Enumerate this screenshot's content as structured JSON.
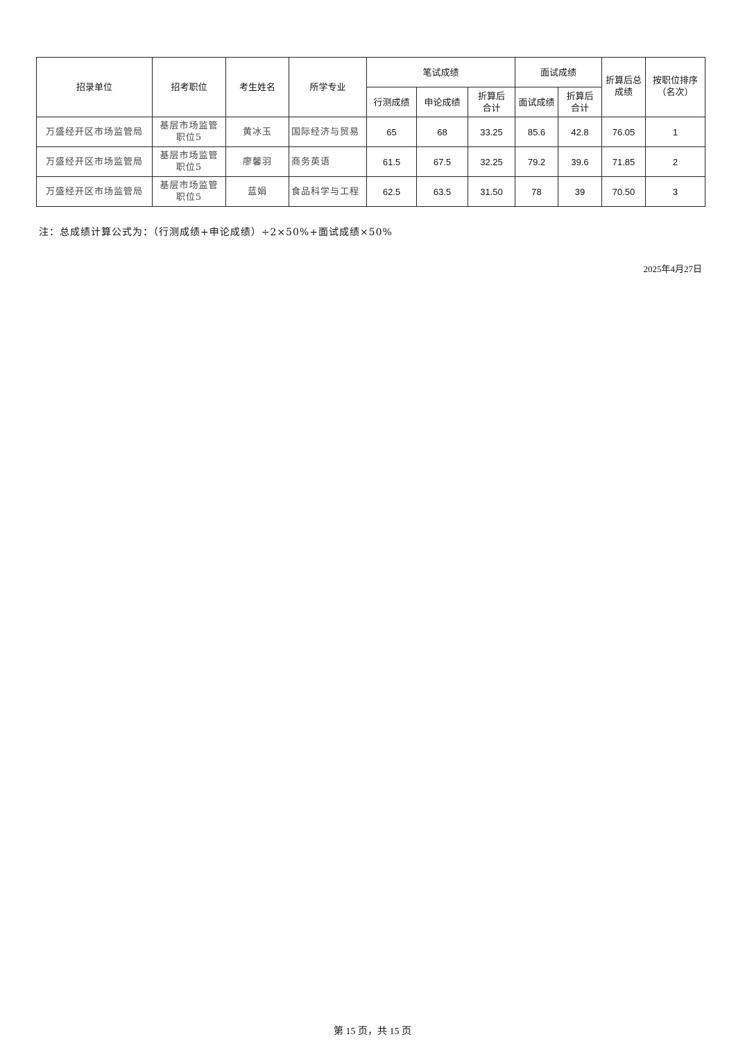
{
  "table": {
    "headers": {
      "unit": "招录单位",
      "position": "招考职位",
      "name": "考生姓名",
      "major": "所学专业",
      "written_group": "笔试成绩",
      "interview_group": "面试成绩",
      "total": "折算后总成绩",
      "rank": "按职位排序（名次）",
      "xingce": "行测成绩",
      "shenlun": "申论成绩",
      "written_sum": "折算后合计",
      "interview": "面试成绩",
      "interview_sum": "折算后合计"
    },
    "rows": [
      {
        "unit": "万盛经开区市场监管局",
        "position": "基层市场监管职位5",
        "name": "黄冰玉",
        "major": "国际经济与贸易",
        "xingce": "65",
        "shenlun": "68",
        "written_sum": "33.25",
        "interview": "85.6",
        "interview_sum": "42.8",
        "total": "76.05",
        "rank": "1"
      },
      {
        "unit": "万盛经开区市场监管局",
        "position": "基层市场监管职位5",
        "name": "廖馨羽",
        "major": "商务英语",
        "xingce": "61.5",
        "shenlun": "67.5",
        "written_sum": "32.25",
        "interview": "79.2",
        "interview_sum": "39.6",
        "total": "71.85",
        "rank": "2"
      },
      {
        "unit": "万盛经开区市场监管局",
        "position": "基层市场监管职位5",
        "name": "蓝娟",
        "major": "食品科学与工程",
        "xingce": "62.5",
        "shenlun": "63.5",
        "written_sum": "31.50",
        "interview": "78",
        "interview_sum": "39",
        "total": "70.50",
        "rank": "3"
      }
    ]
  },
  "note": "注：总成绩计算公式为：（行测成绩+申论成绩）÷2×50%+面试成绩×50%",
  "date": "2025年4月27日",
  "footer": "第 15 页，共 15 页"
}
